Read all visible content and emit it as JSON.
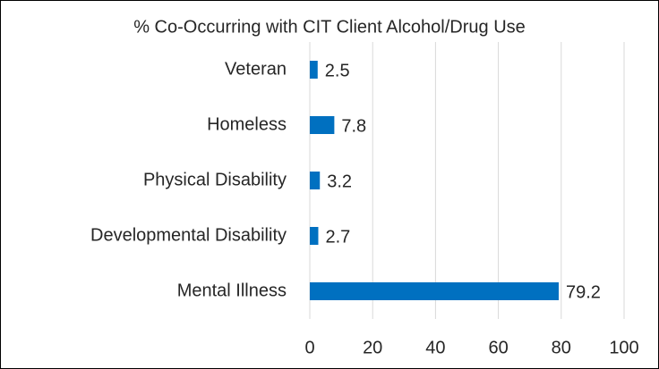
{
  "chart_data": {
    "type": "bar",
    "orientation": "horizontal",
    "title": "% Co-Occurring with CIT Client Alcohol/Drug Use",
    "categories": [
      "Veteran",
      "Homeless",
      "Physical Disability",
      "Developmental Disability",
      "Mental Illness"
    ],
    "values": [
      2.5,
      7.8,
      3.2,
      2.7,
      79.2
    ],
    "color": "#0070c0",
    "xlim": [
      0,
      100
    ],
    "xticks": [
      0,
      20,
      40,
      60,
      80,
      100
    ],
    "grid": true
  }
}
